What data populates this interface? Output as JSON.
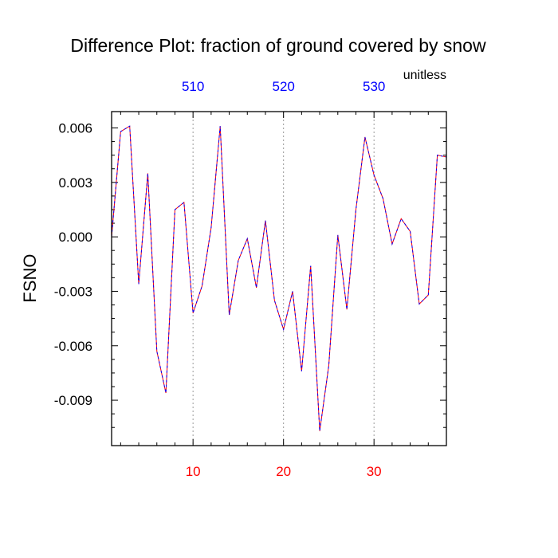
{
  "chart_data": {
    "type": "line",
    "title": "Difference Plot: fraction of ground covered by snow",
    "units_label": "unitless",
    "ylabel": "FSNO",
    "xlabel": "",
    "xlim": [
      1,
      38
    ],
    "ylim": [
      -0.0115,
      0.0069
    ],
    "y_ticks": [
      0.006,
      0.003,
      0.0,
      -0.003,
      -0.006,
      -0.009
    ],
    "y_tick_labels": [
      "0.006",
      "0.003",
      "0.000",
      "-0.003",
      "-0.006",
      "-0.009"
    ],
    "x_ticks_bottom": [
      10,
      20,
      30
    ],
    "x_tick_labels_bottom": [
      "10",
      "20",
      "30"
    ],
    "x_ticks_top": [
      10,
      20,
      30
    ],
    "x_tick_labels_top": [
      "510",
      "520",
      "530"
    ],
    "grid": "vertical dotted lines at labeled x ticks",
    "colors": {
      "bottom_axis_labels": "#ff0000",
      "top_axis_labels": "#0000ff",
      "line_a": "#ff0000",
      "line_b": "#0000ff"
    },
    "series": [
      {
        "x": [
          1,
          2,
          3,
          4,
          5,
          6,
          7,
          8,
          9,
          10,
          11,
          12,
          13,
          14,
          15,
          16,
          17,
          18,
          19,
          20,
          21,
          22,
          23,
          24,
          25,
          26,
          27,
          28,
          29,
          30,
          31,
          32,
          33,
          34,
          35,
          36,
          37,
          38
        ],
        "values": [
          0.0,
          0.0058,
          0.0061,
          -0.0026,
          0.0035,
          -0.0063,
          -0.0086,
          0.0015,
          0.0019,
          -0.0042,
          -0.0027,
          0.0005,
          0.0061,
          -0.0043,
          -0.0013,
          -0.0001,
          -0.0028,
          0.0009,
          -0.0035,
          -0.0051,
          -0.003,
          -0.0074,
          -0.0016,
          -0.0107,
          -0.0071,
          0.0001,
          -0.004,
          0.0015,
          0.0055,
          0.0034,
          0.0021,
          -0.0004,
          0.001,
          0.0003,
          -0.0037,
          -0.0032,
          0.0045,
          0.0044
        ]
      },
      {
        "x": [
          1,
          2,
          3,
          4,
          5,
          6,
          7,
          8,
          9,
          10,
          11,
          12,
          13,
          14,
          15,
          16,
          17,
          18,
          19,
          20,
          21,
          22,
          23,
          24,
          25,
          26,
          27,
          28,
          29,
          30,
          31,
          32,
          33,
          34,
          35,
          36,
          37,
          38
        ],
        "values": [
          0.0,
          0.0058,
          0.0061,
          -0.0026,
          0.0035,
          -0.0063,
          -0.0086,
          0.0015,
          0.0019,
          -0.0042,
          -0.0027,
          0.0005,
          0.0061,
          -0.0043,
          -0.0013,
          -0.0001,
          -0.0028,
          0.0009,
          -0.0035,
          -0.0051,
          -0.003,
          -0.0074,
          -0.0016,
          -0.0107,
          -0.0071,
          0.0001,
          -0.004,
          0.0015,
          0.0055,
          0.0034,
          0.0021,
          -0.0004,
          0.001,
          0.0003,
          -0.0037,
          -0.0032,
          0.0045,
          0.0044
        ]
      }
    ]
  }
}
